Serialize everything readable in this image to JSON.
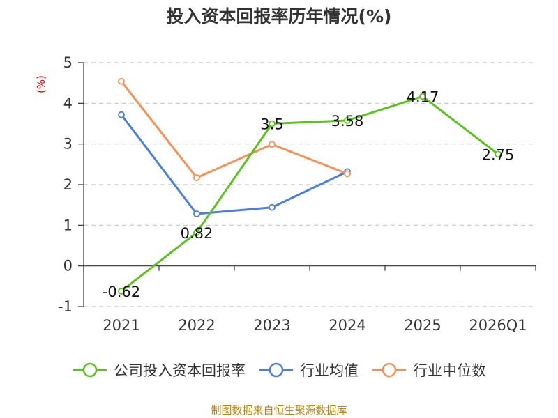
{
  "chart_data": {
    "type": "line",
    "title": "投入资本回报率历年情况(%)",
    "ylabel": "(%)",
    "categories": [
      "2021",
      "2022",
      "2023",
      "2024",
      "2025",
      "2026Q1"
    ],
    "yticks": [
      "5",
      "4",
      "3",
      "2",
      "1",
      "0",
      "-1"
    ],
    "ylim": [
      -1,
      5
    ],
    "grid": true,
    "legend_position": "bottom",
    "series": [
      {
        "name": "公司投入资本回报率",
        "color": "#5bc21f",
        "values": [
          -0.62,
          0.82,
          3.5,
          3.58,
          4.17,
          2.75
        ],
        "labels": [
          "-0.62",
          "0.82",
          "3.5",
          "3.58",
          "4.17",
          "2.75"
        ]
      },
      {
        "name": "行业均值",
        "color": "#4a7fdc",
        "values": [
          3.72,
          1.28,
          1.44,
          2.32,
          null,
          null
        ]
      },
      {
        "name": "行业中位数",
        "color": "#f59056",
        "values": [
          4.54,
          2.17,
          2.99,
          2.27,
          null,
          null
        ]
      }
    ]
  },
  "source": "制图数据来自恒生聚源数据库"
}
